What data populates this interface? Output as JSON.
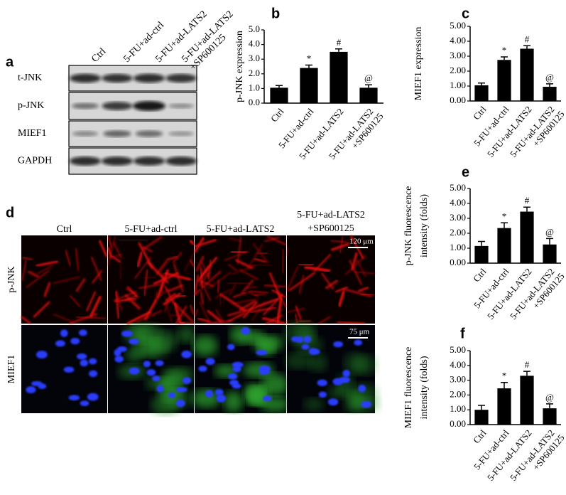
{
  "figure": {
    "blot": {
      "label": "a",
      "lanes": [
        [
          "Ctrl"
        ],
        [
          "5-FU+ad-ctrl"
        ],
        [
          "5-FU+ad-LATS2"
        ],
        [
          "5-FU+ad-LATS2",
          "+SP600125"
        ]
      ],
      "rows": [
        "t-JNK",
        "p-JNK",
        "MIEF1",
        "GAPDH"
      ]
    },
    "microscopy": {
      "label": "d",
      "columns": [
        [
          "Ctrl"
        ],
        [
          "5-FU+ad-ctrl"
        ],
        [
          "5-FU+ad-LATS2"
        ],
        [
          "5-FU+ad-LATS2",
          "+SP600125"
        ]
      ],
      "rows": [
        "p-JNK",
        "MIEF1"
      ],
      "scale_bars": [
        "120 μm",
        "75 μm"
      ]
    }
  },
  "chart_data": [
    {
      "type": "bar",
      "label": "b",
      "ylabel": [
        "p-JNK expression"
      ],
      "categories": [
        [
          "Ctrl"
        ],
        [
          "5-FU+ad-ctrl"
        ],
        [
          "5-FU+ad-LATS2"
        ],
        [
          "5-FU+ad-LATS2",
          "+SP600125"
        ]
      ],
      "values": [
        1.05,
        2.4,
        3.5,
        1.05
      ],
      "errors": [
        0.15,
        0.2,
        0.2,
        0.2
      ],
      "annotations": [
        null,
        "*",
        "#",
        "@"
      ],
      "color": "#000000",
      "ylim": [
        0,
        5
      ],
      "yticks": [
        {
          "value": 0,
          "label": "0.0"
        },
        {
          "value": 1,
          "label": "1.0"
        },
        {
          "value": 2,
          "label": "2.0"
        },
        {
          "value": 3,
          "label": "3.0"
        },
        {
          "value": 4,
          "label": "4.0"
        },
        {
          "value": 5,
          "label": "5.0"
        }
      ]
    },
    {
      "type": "bar",
      "label": "c",
      "ylabel": [
        "MIEF1 expression"
      ],
      "categories": [
        [
          "Ctrl"
        ],
        [
          "5-FU+ad-ctrl"
        ],
        [
          "5-FU+ad-LATS2"
        ],
        [
          "5-FU+ad-LATS2",
          "+SP600125"
        ]
      ],
      "values": [
        1.05,
        2.75,
        3.5,
        0.95
      ],
      "errors": [
        0.15,
        0.2,
        0.2,
        0.2
      ],
      "annotations": [
        null,
        "*",
        "#",
        "@"
      ],
      "color": "#000000",
      "ylim": [
        0,
        5
      ],
      "yticks": [
        {
          "value": 0,
          "label": "0.00"
        },
        {
          "value": 1,
          "label": "1.00"
        },
        {
          "value": 2,
          "label": "2.00"
        },
        {
          "value": 3,
          "label": "3.00"
        },
        {
          "value": 4,
          "label": "4.00"
        },
        {
          "value": 5,
          "label": "5.00"
        }
      ]
    },
    {
      "type": "bar",
      "label": "e",
      "ylabel": [
        "p-JNK fluorescence",
        "intensity (folds)"
      ],
      "categories": [
        [
          "Ctrl"
        ],
        [
          "5-FU+ad-ctrl"
        ],
        [
          "5-FU+ad-LATS2"
        ],
        [
          "5-FU+ad-LATS2",
          "+SP600125"
        ]
      ],
      "values": [
        1.15,
        2.35,
        3.45,
        1.25
      ],
      "errors": [
        0.3,
        0.35,
        0.3,
        0.4
      ],
      "annotations": [
        null,
        "*",
        "#",
        "@"
      ],
      "color": "#000000",
      "ylim": [
        0,
        5
      ],
      "yticks": [
        {
          "value": 0,
          "label": "0.00"
        },
        {
          "value": 1,
          "label": "1.00"
        },
        {
          "value": 2,
          "label": "2.00"
        },
        {
          "value": 3,
          "label": "3.00"
        },
        {
          "value": 4,
          "label": "4.00"
        },
        {
          "value": 5,
          "label": "5.00"
        }
      ]
    },
    {
      "type": "bar",
      "label": "f",
      "ylabel": [
        "MIEF1 fluorescence",
        "intensity (folds)"
      ],
      "categories": [
        [
          "Ctrl"
        ],
        [
          "5-FU+ad-ctrl"
        ],
        [
          "5-FU+ad-LATS2"
        ],
        [
          "5-FU+ad-LATS2",
          "+SP600125"
        ]
      ],
      "values": [
        1.0,
        2.45,
        3.3,
        1.1
      ],
      "errors": [
        0.3,
        0.4,
        0.3,
        0.3
      ],
      "annotations": [
        null,
        "*",
        "#",
        "@"
      ],
      "color": "#000000",
      "ylim": [
        0,
        5
      ],
      "yticks": [
        {
          "value": 0,
          "label": "0.00"
        },
        {
          "value": 1,
          "label": "1.00"
        },
        {
          "value": 2,
          "label": "2.00"
        },
        {
          "value": 3,
          "label": "3.00"
        },
        {
          "value": 4,
          "label": "4.00"
        },
        {
          "value": 5,
          "label": "5.00"
        }
      ]
    }
  ]
}
